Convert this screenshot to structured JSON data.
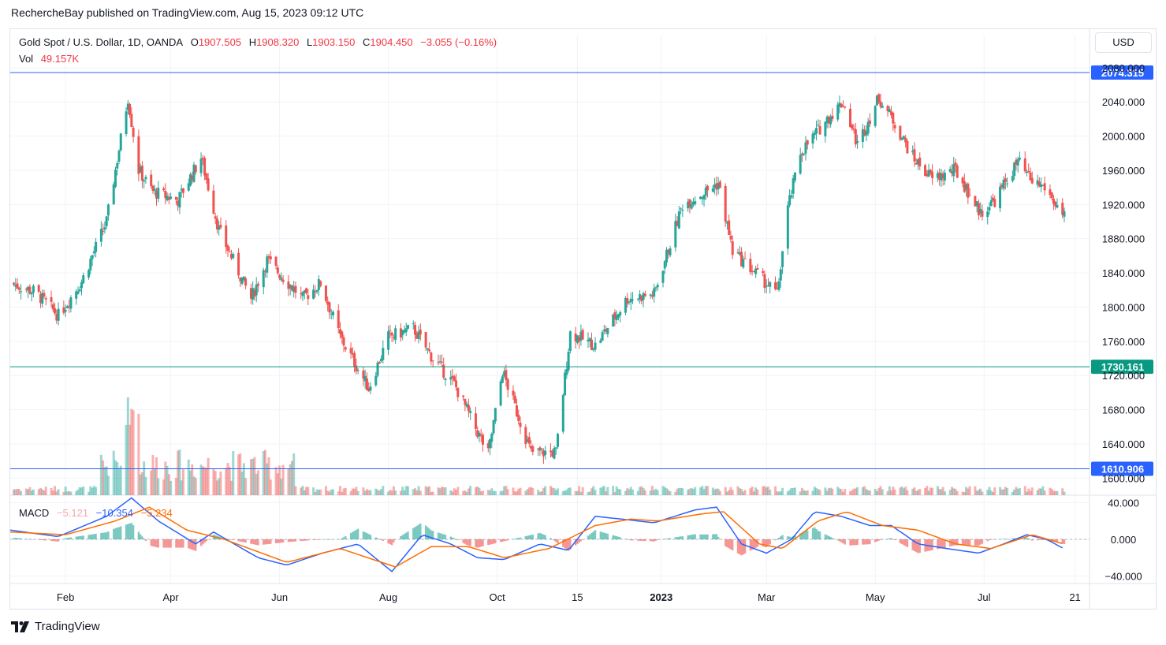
{
  "header": {
    "text": "RechercheBay published on TradingView.com, Aug 15, 2023 09:12 UTC"
  },
  "legend": {
    "symbol": "Gold Spot / U.S. Dollar, 1D, OANDA",
    "o_label": "O",
    "o_value": "1907.505",
    "h_label": "H",
    "h_value": "1908.320",
    "l_label": "L",
    "l_value": "1903.150",
    "c_label": "C",
    "c_value": "1904.450",
    "change": "−3.055 (−0.16%)",
    "vol_label": "Vol",
    "vol_value": "49.157K",
    "macd_label": "MACD",
    "macd_hist": "−5.121",
    "macd_line": "−10.354",
    "macd_signal": "−5.234"
  },
  "currency": "USD",
  "footer": {
    "brand": "TradingView"
  },
  "colors": {
    "up": "#26a69a",
    "down": "#ef5350",
    "macd": "#2962ff",
    "signal": "#ff6d00",
    "hline_blue": "#2962ff",
    "hline_teal": "#089981",
    "grid": "#f0f3fa"
  },
  "chart_data": {
    "type": "candlestick",
    "symbol": "Gold Spot / U.S. Dollar",
    "interval": "1D",
    "price_axis": {
      "range": [
        1580,
        2090
      ],
      "ticks": [
        1600,
        1640,
        1680,
        1720,
        1760,
        1800,
        1840,
        1880,
        1920,
        1960,
        2000,
        2040,
        2080
      ],
      "tick_labels": [
        "1600.000",
        "1640.000",
        "1680.000",
        "1720.000",
        "1760.000",
        "1800.000",
        "1840.000",
        "1880.000",
        "1920.000",
        "1960.000",
        "2000.000",
        "2040.000",
        "2080.000"
      ]
    },
    "time_axis": {
      "labels": [
        "Feb",
        "Apr",
        "Jun",
        "Aug",
        "Oct",
        "15",
        "2023",
        "Mar",
        "May",
        "Jul",
        "21"
      ],
      "dates": [
        "2022-02-01",
        "2022-04-01",
        "2022-06-01",
        "2022-08-01",
        "2022-10-01",
        "2022-11-15",
        "2023-01-01",
        "2023-03-01",
        "2023-05-01",
        "2023-07-01",
        "2023-08-21"
      ]
    },
    "horizontal_lines": [
      {
        "value": 2074.315,
        "label": "2074.315",
        "color": "#2962ff"
      },
      {
        "value": 1730.161,
        "label": "1730.161",
        "color": "#089981"
      },
      {
        "value": 1610.906,
        "label": "1610.906",
        "color": "#2962ff"
      }
    ],
    "close_path": [
      [
        "2022-01-01",
        1828
      ],
      [
        "2022-01-15",
        1818
      ],
      [
        "2022-01-28",
        1790
      ],
      [
        "2022-02-10",
        1830
      ],
      [
        "2022-02-24",
        1900
      ],
      [
        "2022-03-08",
        2045
      ],
      [
        "2022-03-14",
        1960
      ],
      [
        "2022-03-22",
        1935
      ],
      [
        "2022-04-05",
        1925
      ],
      [
        "2022-04-18",
        1975
      ],
      [
        "2022-04-28",
        1890
      ],
      [
        "2022-05-16",
        1810
      ],
      [
        "2022-05-25",
        1855
      ],
      [
        "2022-06-14",
        1810
      ],
      [
        "2022-06-24",
        1828
      ],
      [
        "2022-07-05",
        1765
      ],
      [
        "2022-07-21",
        1705
      ],
      [
        "2022-08-01",
        1765
      ],
      [
        "2022-08-15",
        1775
      ],
      [
        "2022-08-26",
        1740
      ],
      [
        "2022-09-07",
        1710
      ],
      [
        "2022-09-26",
        1628
      ],
      [
        "2022-10-04",
        1725
      ],
      [
        "2022-10-20",
        1630
      ],
      [
        "2022-11-03",
        1630
      ],
      [
        "2022-11-11",
        1770
      ],
      [
        "2022-11-25",
        1755
      ],
      [
        "2022-12-13",
        1810
      ],
      [
        "2022-12-28",
        1815
      ],
      [
        "2023-01-13",
        1920
      ],
      [
        "2023-01-26",
        1935
      ],
      [
        "2023-02-02",
        1945
      ],
      [
        "2023-02-10",
        1865
      ],
      [
        "2023-02-28",
        1830
      ],
      [
        "2023-03-07",
        1815
      ],
      [
        "2023-03-13",
        1915
      ],
      [
        "2023-03-20",
        1980
      ],
      [
        "2023-04-04",
        2020
      ],
      [
        "2023-04-13",
        2040
      ],
      [
        "2023-04-21",
        1990
      ],
      [
        "2023-05-03",
        2045
      ],
      [
        "2023-05-12",
        2015
      ],
      [
        "2023-05-22",
        1975
      ],
      [
        "2023-06-02",
        1950
      ],
      [
        "2023-06-15",
        1960
      ],
      [
        "2023-06-29",
        1910
      ],
      [
        "2023-07-07",
        1925
      ],
      [
        "2023-07-20",
        1970
      ],
      [
        "2023-07-27",
        1948
      ],
      [
        "2023-08-04",
        1940
      ],
      [
        "2023-08-15",
        1904.45
      ]
    ],
    "last_candle": {
      "open": 1907.505,
      "high": 1908.32,
      "low": 1903.15,
      "close": 1904.45
    },
    "volume": {
      "last": "49.157K"
    },
    "macd": {
      "ticks": [
        -40,
        0,
        40
      ],
      "tick_labels": [
        "−40.000",
        "0.000",
        "40.000"
      ],
      "histogram": -5.121,
      "macd": -10.354,
      "signal": -5.234,
      "macd_path": [
        [
          "2022-01-01",
          10
        ],
        [
          "2022-01-28",
          3
        ],
        [
          "2022-02-24",
          25
        ],
        [
          "2022-03-10",
          45
        ],
        [
          "2022-03-25",
          20
        ],
        [
          "2022-04-15",
          -5
        ],
        [
          "2022-04-25",
          8
        ],
        [
          "2022-05-20",
          -20
        ],
        [
          "2022-06-05",
          -28
        ],
        [
          "2022-06-25",
          -15
        ],
        [
          "2022-07-15",
          -5
        ],
        [
          "2022-08-03",
          -35
        ],
        [
          "2022-08-20",
          5
        ],
        [
          "2022-09-05",
          -5
        ],
        [
          "2022-09-20",
          -20
        ],
        [
          "2022-10-05",
          -22
        ],
        [
          "2022-10-25",
          -5
        ],
        [
          "2022-11-10",
          -12
        ],
        [
          "2022-11-25",
          25
        ],
        [
          "2022-12-10",
          22
        ],
        [
          "2022-12-28",
          18
        ],
        [
          "2023-01-20",
          32
        ],
        [
          "2023-02-01",
          35
        ],
        [
          "2023-02-15",
          -5
        ],
        [
          "2023-03-01",
          -15
        ],
        [
          "2023-03-15",
          0
        ],
        [
          "2023-03-28",
          30
        ],
        [
          "2023-04-12",
          25
        ],
        [
          "2023-04-28",
          15
        ],
        [
          "2023-05-10",
          15
        ],
        [
          "2023-05-25",
          -5
        ],
        [
          "2023-06-10",
          -10
        ],
        [
          "2023-06-28",
          -15
        ],
        [
          "2023-07-12",
          -5
        ],
        [
          "2023-07-25",
          5
        ],
        [
          "2023-08-05",
          0
        ],
        [
          "2023-08-15",
          -10.354
        ]
      ],
      "signal_path": [
        [
          "2022-01-01",
          8
        ],
        [
          "2022-02-01",
          5
        ],
        [
          "2022-03-01",
          20
        ],
        [
          "2022-03-20",
          35
        ],
        [
          "2022-04-10",
          10
        ],
        [
          "2022-05-01",
          0
        ],
        [
          "2022-06-05",
          -25
        ],
        [
          "2022-07-05",
          -10
        ],
        [
          "2022-08-05",
          -30
        ],
        [
          "2022-08-25",
          -8
        ],
        [
          "2022-09-15",
          -8
        ],
        [
          "2022-10-05",
          -20
        ],
        [
          "2022-10-30",
          -10
        ],
        [
          "2022-11-25",
          15
        ],
        [
          "2022-12-15",
          22
        ],
        [
          "2022-12-30",
          20
        ],
        [
          "2023-01-25",
          28
        ],
        [
          "2023-02-05",
          30
        ],
        [
          "2023-02-25",
          -5
        ],
        [
          "2023-03-10",
          -10
        ],
        [
          "2023-03-30",
          20
        ],
        [
          "2023-04-15",
          30
        ],
        [
          "2023-05-05",
          15
        ],
        [
          "2023-05-25",
          10
        ],
        [
          "2023-06-15",
          -5
        ],
        [
          "2023-07-05",
          -10
        ],
        [
          "2023-07-28",
          5
        ],
        [
          "2023-08-15",
          -5.234
        ]
      ]
    }
  }
}
